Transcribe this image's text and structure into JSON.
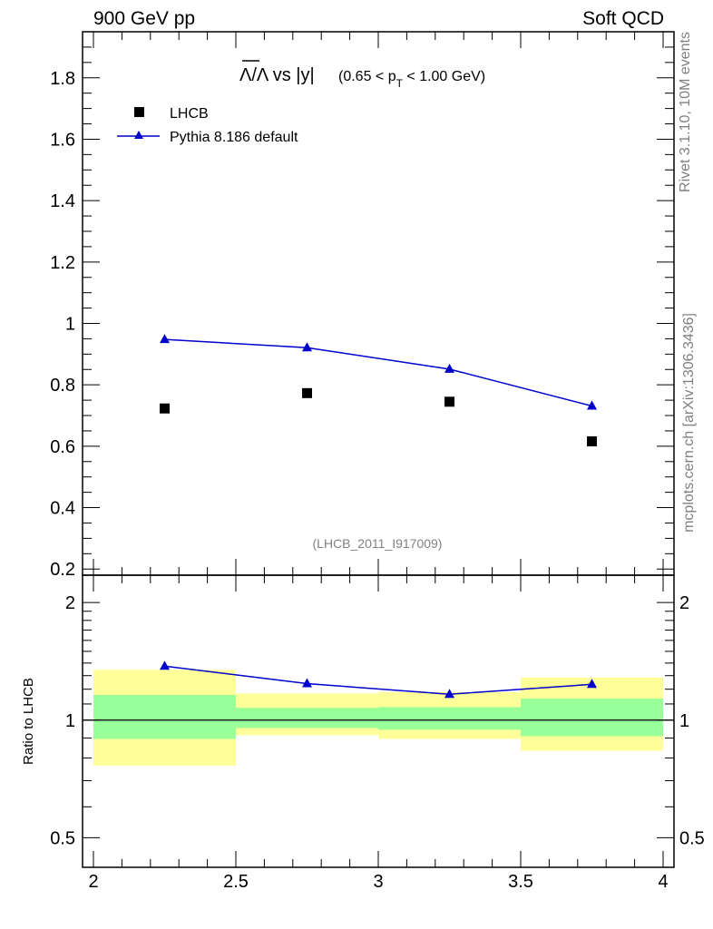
{
  "header": {
    "left": "900 GeV pp",
    "right": "Soft QCD"
  },
  "side_labels": {
    "rivet": "Rivet 3.1.10,  10M events",
    "source": "mcplots.cern.ch [arXiv:1306.3436]"
  },
  "chart_data": [
    {
      "type": "scatter",
      "title_main": "Λ/Λ vs |y|",
      "title_cut_prefix": "(0.65 < p",
      "title_cut_sub": "T",
      "title_cut_suffix": " < 1.00 GeV)",
      "analysis_id": "(LHCB_2011_I917009)",
      "xlim": [
        2,
        4
      ],
      "ylim": [
        0.18,
        1.95
      ],
      "x_ticks": [
        "2",
        "2.5",
        "3",
        "3.5",
        "4"
      ],
      "y_ticks": [
        "0.2",
        "0.4",
        "0.6",
        "0.8",
        "1",
        "1.2",
        "1.4",
        "1.6",
        "1.8"
      ],
      "legend_placement": "top-left",
      "series": [
        {
          "name": "LHCB",
          "marker": "square",
          "color": "#000000",
          "x": [
            2.25,
            2.75,
            3.25,
            3.75
          ],
          "y": [
            0.723,
            0.773,
            0.745,
            0.616
          ]
        },
        {
          "name": "Pythia 8.186 default",
          "marker": "triangle",
          "color": "#0000cc",
          "x": [
            2.25,
            2.75,
            3.25,
            3.75
          ],
          "y": [
            0.948,
            0.921,
            0.851,
            0.731
          ]
        }
      ]
    },
    {
      "type": "line",
      "ylabel": "Ratio to LHCB",
      "xlim": [
        2,
        4
      ],
      "ylim": [
        0.42,
        2.35
      ],
      "y_scale": "log",
      "x_ticks": [
        "2",
        "2.5",
        "3",
        "3.5",
        "4"
      ],
      "y_ticks": [
        "0.5",
        "1",
        "2"
      ],
      "bands": [
        {
          "x0": 2.0,
          "x1": 2.5,
          "yellow": [
            0.765,
            1.345
          ],
          "green": [
            0.895,
            1.16
          ]
        },
        {
          "x0": 2.5,
          "x1": 3.0,
          "yellow": [
            0.915,
            1.17
          ],
          "green": [
            0.955,
            1.075
          ]
        },
        {
          "x0": 3.0,
          "x1": 3.5,
          "yellow": [
            0.895,
            1.18
          ],
          "green": [
            0.945,
            1.08
          ]
        },
        {
          "x0": 3.5,
          "x1": 4.0,
          "yellow": [
            0.835,
            1.285
          ],
          "green": [
            0.91,
            1.135
          ]
        }
      ],
      "series": [
        {
          "name": "Pythia 8.186 default",
          "marker": "triangle",
          "color": "#0000cc",
          "x": [
            2.25,
            2.75,
            3.25,
            3.75
          ],
          "y": [
            1.375,
            1.24,
            1.165,
            1.235
          ]
        }
      ],
      "reference_line": 1
    }
  ],
  "colors": {
    "band_yellow": "#ffff99",
    "band_green": "#99ff99",
    "mc": "#0000cc",
    "data": "#000000"
  }
}
